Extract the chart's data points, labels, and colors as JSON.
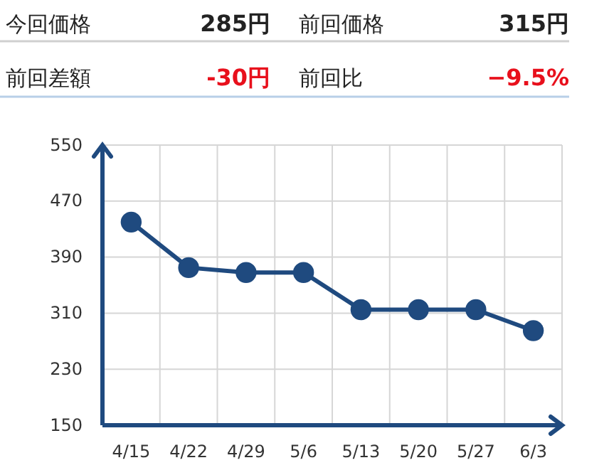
{
  "chart_data": [
    {
      "type": "other",
      "annotations": [
        "今回価格",
        "285円",
        "前回価格",
        "315円",
        "前回差額",
        "-30円",
        "前回比",
        "−9.5%"
      ]
    },
    {
      "type": "line",
      "categories": [
        "4/15",
        "4/22",
        "4/29",
        "5/6",
        "5/13",
        "5/20",
        "5/27",
        "6/3"
      ],
      "series": [
        {
          "color": "#1f4a7f",
          "values": [
            440,
            375,
            368,
            368,
            315,
            315,
            315,
            285
          ]
        }
      ],
      "ylim": [
        150,
        550
      ],
      "yticks": [
        150,
        230,
        310,
        390,
        470,
        550
      ],
      "grid": true,
      "marker": "circle",
      "line_style": "solid"
    }
  ]
}
